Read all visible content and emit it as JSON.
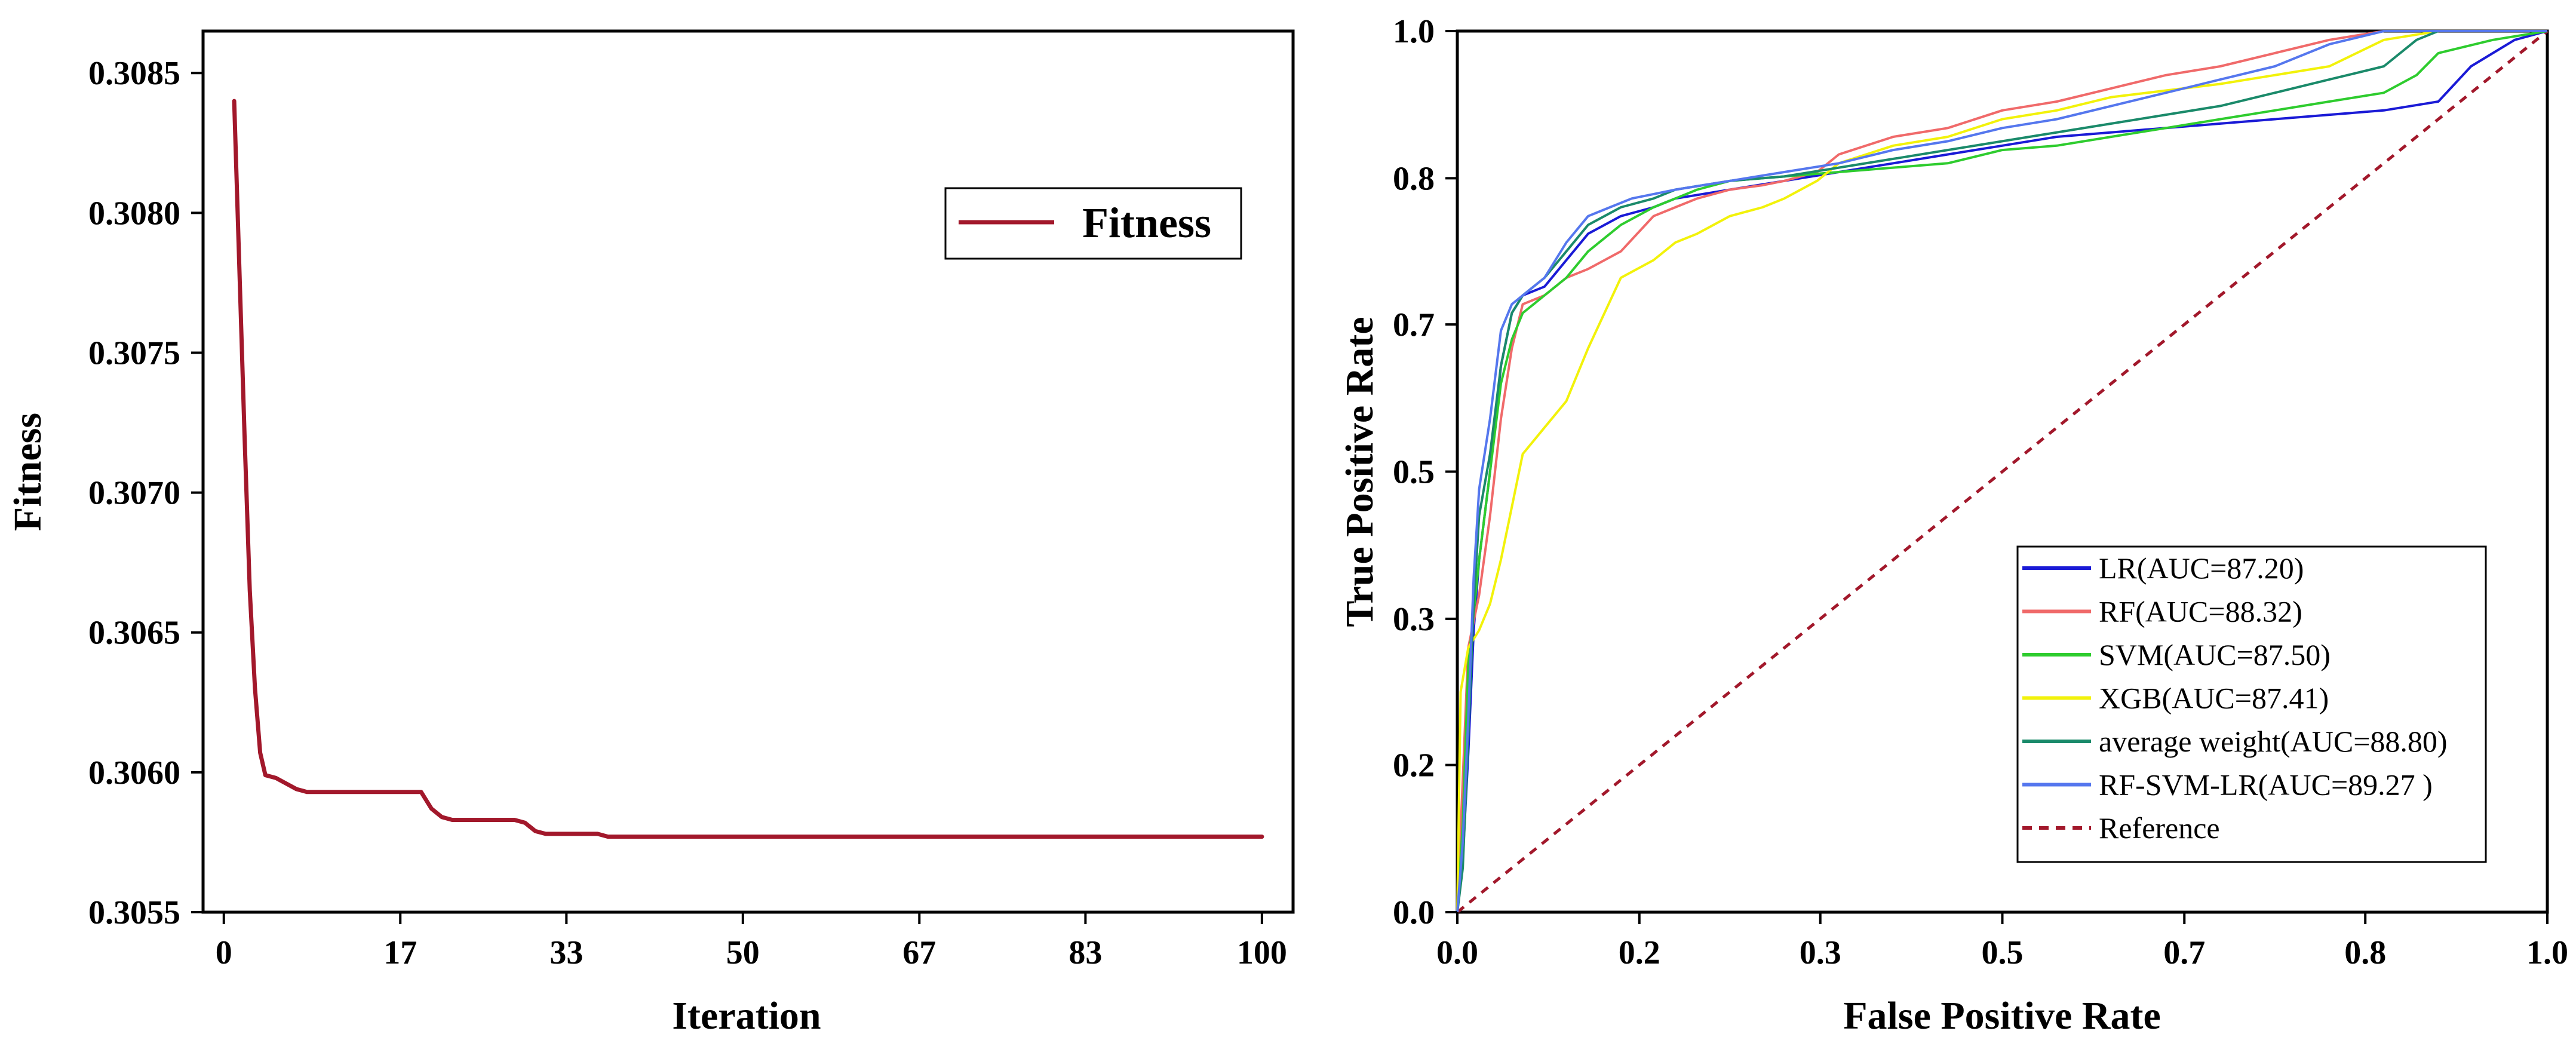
{
  "chart_data": [
    {
      "type": "line",
      "title": "",
      "xlabel": "Iteration",
      "ylabel": "Fitness",
      "xlim": [
        -2,
        103
      ],
      "ylim": [
        0.3055,
        0.30865
      ],
      "x_ticks": [
        0,
        17,
        33,
        50,
        67,
        83,
        100
      ],
      "x_tick_labels": [
        "0",
        "17",
        "33",
        "50",
        "67",
        "83",
        "100"
      ],
      "y_ticks": [
        0.3055,
        0.306,
        0.3065,
        0.307,
        0.3075,
        0.308,
        0.3085
      ],
      "y_tick_labels": [
        "0.3055",
        "0.3060",
        "0.3065",
        "0.3070",
        "0.3075",
        "0.3080",
        "0.3085"
      ],
      "legend_position": "upper-right",
      "series": [
        {
          "name": "Fitness",
          "color": "#a2182b",
          "x": [
            1,
            1.5,
            2,
            2.5,
            3,
            3.5,
            4,
            5,
            6,
            7,
            8,
            10,
            12,
            15,
            18,
            19,
            20,
            21,
            22,
            25,
            28,
            29,
            30,
            31,
            33,
            35,
            36,
            37,
            40,
            50,
            60,
            70,
            80,
            90,
            100
          ],
          "values": [
            0.3084,
            0.3078,
            0.3072,
            0.30665,
            0.3063,
            0.30607,
            0.30599,
            0.30598,
            0.30596,
            0.30594,
            0.30593,
            0.30593,
            0.30593,
            0.30593,
            0.30593,
            0.30593,
            0.30587,
            0.30584,
            0.30583,
            0.30583,
            0.30583,
            0.30582,
            0.30579,
            0.30578,
            0.30578,
            0.30578,
            0.30578,
            0.30577,
            0.30577,
            0.30577,
            0.30577,
            0.30577,
            0.30577,
            0.30577,
            0.30577
          ]
        }
      ]
    },
    {
      "type": "line",
      "title": "",
      "xlabel": "False Positive Rate",
      "ylabel": "True Positive Rate",
      "xlim": [
        0,
        1
      ],
      "ylim": [
        0,
        1
      ],
      "x_ticks": [
        0,
        0.167,
        0.333,
        0.5,
        0.667,
        0.833,
        1
      ],
      "x_tick_labels": [
        "0.0",
        "0.2",
        "0.3",
        "0.5",
        "0.7",
        "0.8",
        "1.0"
      ],
      "y_ticks": [
        0,
        0.167,
        0.333,
        0.5,
        0.667,
        0.833,
        1
      ],
      "y_tick_labels": [
        "0.0",
        "0.2",
        "0.3",
        "0.5",
        "0.7",
        "0.8",
        "1.0"
      ],
      "legend_position": "lower-right",
      "series": [
        {
          "name": "LR(AUC=87.20)",
          "color": "#1a1ad6",
          "dashed": false,
          "x": [
            0,
            0.005,
            0.01,
            0.015,
            0.02,
            0.03,
            0.04,
            0.05,
            0.06,
            0.08,
            0.1,
            0.12,
            0.15,
            0.18,
            0.2,
            0.25,
            0.3,
            0.35,
            0.4,
            0.45,
            0.5,
            0.55,
            0.6,
            0.65,
            0.7,
            0.75,
            0.8,
            0.85,
            0.9,
            0.93,
            0.97,
            1
          ],
          "y": [
            0,
            0.06,
            0.18,
            0.32,
            0.4,
            0.5,
            0.62,
            0.68,
            0.7,
            0.71,
            0.74,
            0.77,
            0.79,
            0.8,
            0.81,
            0.82,
            0.83,
            0.84,
            0.85,
            0.86,
            0.87,
            0.88,
            0.885,
            0.89,
            0.895,
            0.9,
            0.905,
            0.91,
            0.92,
            0.96,
            0.99,
            1
          ]
        },
        {
          "name": "RF(AUC=88.32)",
          "color": "#f06a6a",
          "dashed": false,
          "x": [
            0,
            0.005,
            0.01,
            0.02,
            0.03,
            0.04,
            0.05,
            0.06,
            0.08,
            0.1,
            0.12,
            0.15,
            0.18,
            0.2,
            0.22,
            0.25,
            0.28,
            0.3,
            0.33,
            0.35,
            0.4,
            0.45,
            0.5,
            0.55,
            0.6,
            0.65,
            0.7,
            0.75,
            0.8,
            0.85,
            0.9,
            0.95,
            1
          ],
          "y": [
            0,
            0.15,
            0.3,
            0.36,
            0.45,
            0.56,
            0.64,
            0.69,
            0.7,
            0.72,
            0.73,
            0.75,
            0.79,
            0.8,
            0.81,
            0.82,
            0.825,
            0.83,
            0.84,
            0.86,
            0.88,
            0.89,
            0.91,
            0.92,
            0.935,
            0.95,
            0.96,
            0.975,
            0.99,
            1,
            1,
            1,
            1
          ]
        },
        {
          "name": "SVM(AUC=87.50)",
          "color": "#2ecc2e",
          "dashed": false,
          "x": [
            0,
            0.005,
            0.01,
            0.02,
            0.03,
            0.04,
            0.05,
            0.06,
            0.08,
            0.1,
            0.12,
            0.15,
            0.18,
            0.2,
            0.22,
            0.25,
            0.3,
            0.35,
            0.4,
            0.45,
            0.5,
            0.55,
            0.6,
            0.65,
            0.7,
            0.75,
            0.8,
            0.85,
            0.88,
            0.9,
            0.95,
            1
          ],
          "y": [
            0,
            0.1,
            0.28,
            0.4,
            0.5,
            0.6,
            0.65,
            0.68,
            0.7,
            0.72,
            0.75,
            0.78,
            0.8,
            0.81,
            0.82,
            0.83,
            0.835,
            0.84,
            0.845,
            0.85,
            0.865,
            0.87,
            0.88,
            0.89,
            0.9,
            0.91,
            0.92,
            0.93,
            0.95,
            0.975,
            0.99,
            1
          ]
        },
        {
          "name": "XGB(AUC=87.41)",
          "color": "#f2f20a",
          "dashed": false,
          "x": [
            0,
            0.003,
            0.01,
            0.02,
            0.03,
            0.04,
            0.05,
            0.06,
            0.08,
            0.1,
            0.12,
            0.15,
            0.18,
            0.2,
            0.22,
            0.25,
            0.28,
            0.3,
            0.33,
            0.35,
            0.4,
            0.45,
            0.5,
            0.55,
            0.6,
            0.7,
            0.8,
            0.85,
            0.9,
            0.95,
            1
          ],
          "y": [
            0,
            0.25,
            0.3,
            0.32,
            0.35,
            0.4,
            0.46,
            0.52,
            0.55,
            0.58,
            0.64,
            0.72,
            0.74,
            0.76,
            0.77,
            0.79,
            0.8,
            0.81,
            0.83,
            0.85,
            0.87,
            0.88,
            0.9,
            0.91,
            0.925,
            0.94,
            0.96,
            0.99,
            1,
            1,
            1
          ]
        },
        {
          "name": "average weight(AUC=88.80)",
          "color": "#1a8a6a",
          "dashed": false,
          "x": [
            0,
            0.005,
            0.01,
            0.015,
            0.02,
            0.03,
            0.04,
            0.05,
            0.06,
            0.08,
            0.1,
            0.12,
            0.15,
            0.18,
            0.2,
            0.25,
            0.3,
            0.35,
            0.4,
            0.45,
            0.5,
            0.55,
            0.6,
            0.65,
            0.7,
            0.75,
            0.8,
            0.85,
            0.88,
            0.9,
            0.95,
            1
          ],
          "y": [
            0,
            0.05,
            0.2,
            0.35,
            0.45,
            0.52,
            0.62,
            0.68,
            0.7,
            0.72,
            0.75,
            0.78,
            0.8,
            0.81,
            0.82,
            0.83,
            0.835,
            0.845,
            0.855,
            0.865,
            0.875,
            0.885,
            0.895,
            0.905,
            0.915,
            0.93,
            0.945,
            0.96,
            0.99,
            1,
            1,
            1
          ]
        },
        {
          "name": "RF-SVM-LR(AUC=89.27 )",
          "color": "#5577ee",
          "dashed": false,
          "x": [
            0,
            0.005,
            0.01,
            0.015,
            0.02,
            0.03,
            0.04,
            0.05,
            0.06,
            0.08,
            0.1,
            0.12,
            0.14,
            0.16,
            0.18,
            0.2,
            0.25,
            0.3,
            0.35,
            0.4,
            0.45,
            0.5,
            0.55,
            0.6,
            0.65,
            0.7,
            0.75,
            0.8,
            0.85,
            0.9,
            0.95,
            1
          ],
          "y": [
            0,
            0.08,
            0.22,
            0.38,
            0.48,
            0.56,
            0.66,
            0.69,
            0.7,
            0.72,
            0.76,
            0.79,
            0.8,
            0.81,
            0.815,
            0.82,
            0.83,
            0.84,
            0.85,
            0.865,
            0.875,
            0.89,
            0.9,
            0.915,
            0.93,
            0.945,
            0.96,
            0.985,
            1,
            1,
            1,
            1
          ]
        },
        {
          "name": "Reference",
          "color": "#a2182b",
          "dashed": true,
          "x": [
            0,
            1
          ],
          "y": [
            0,
            1
          ]
        }
      ]
    }
  ]
}
